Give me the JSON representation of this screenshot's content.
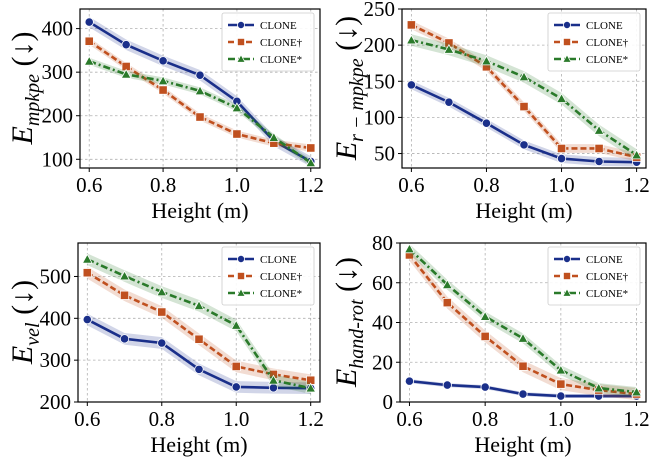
{
  "chart_data": [
    {
      "type": "line",
      "ylabel_main": "E",
      "ylabel_sub": "mpkpe",
      "ylabel_arrow": "(↓)",
      "xlabel": "Height (m)",
      "x": [
        0.6,
        0.7,
        0.8,
        0.9,
        1.0,
        1.1,
        1.2
      ],
      "xticks": [
        "0.6",
        "0.8",
        "1.0",
        "1.2"
      ],
      "yticks": [
        "100",
        "200",
        "300",
        "400"
      ],
      "ylim": [
        80,
        445
      ],
      "grid": true,
      "legend_position": "top-right",
      "series": [
        {
          "name": "CLONE",
          "color": "#1a2f8a",
          "marker": "circle",
          "dash": "solid",
          "values": [
            415,
            363,
            326,
            293,
            233,
            142,
            95
          ],
          "band": 12
        },
        {
          "name": "CLONE†",
          "color": "#c0501f",
          "marker": "square",
          "dash": "dashed",
          "values": [
            371,
            313,
            259,
            197,
            158,
            137,
            126
          ],
          "band": 8
        },
        {
          "name": "CLONE*",
          "color": "#2a7a2a",
          "marker": "triangle",
          "dash": "dashdot",
          "values": [
            325,
            295,
            280,
            257,
            218,
            150,
            92
          ],
          "band": 8
        }
      ]
    },
    {
      "type": "line",
      "ylabel_main": "E",
      "ylabel_sub": "r − mpkpe",
      "ylabel_arrow": "(↓)",
      "xlabel": "Height (m)",
      "x": [
        0.6,
        0.7,
        0.8,
        0.9,
        1.0,
        1.1,
        1.2
      ],
      "xticks": [
        "0.6",
        "0.8",
        "1.0",
        "1.2"
      ],
      "yticks": [
        "50",
        "100",
        "150",
        "200",
        "250"
      ],
      "ylim": [
        30,
        250
      ],
      "grid": true,
      "legend_position": "top-right",
      "series": [
        {
          "name": "CLONE",
          "color": "#1a2f8a",
          "marker": "circle",
          "dash": "solid",
          "values": [
            145,
            121,
            92,
            62,
            43,
            39,
            38
          ],
          "band": 6
        },
        {
          "name": "CLONE†",
          "color": "#c0501f",
          "marker": "square",
          "dash": "dashed",
          "values": [
            228,
            203,
            170,
            115,
            57,
            57,
            45
          ],
          "band": 6
        },
        {
          "name": "CLONE*",
          "color": "#2a7a2a",
          "marker": "triangle",
          "dash": "dashdot",
          "values": [
            207,
            194,
            178,
            156,
            126,
            82,
            48
          ],
          "band": 8
        }
      ]
    },
    {
      "type": "line",
      "ylabel_main": "E",
      "ylabel_sub": "vel",
      "ylabel_arrow": "(↓)",
      "xlabel": "Height (m)",
      "x": [
        0.6,
        0.7,
        0.8,
        0.9,
        1.0,
        1.1,
        1.2
      ],
      "xticks": [
        "0.6",
        "0.8",
        "1.0",
        "1.2"
      ],
      "yticks": [
        "200",
        "300",
        "400",
        "500"
      ],
      "ylim": [
        200,
        580
      ],
      "grid": true,
      "legend_position": "top-right",
      "series": [
        {
          "name": "CLONE",
          "color": "#1a2f8a",
          "marker": "circle",
          "dash": "solid",
          "values": [
            397,
            351,
            341,
            278,
            236,
            234,
            233
          ],
          "band": 14
        },
        {
          "name": "CLONE†",
          "color": "#c0501f",
          "marker": "square",
          "dash": "dashed",
          "values": [
            509,
            455,
            415,
            350,
            285,
            266,
            252
          ],
          "band": 14
        },
        {
          "name": "CLONE*",
          "color": "#2a7a2a",
          "marker": "triangle",
          "dash": "dashdot",
          "values": [
            541,
            501,
            463,
            430,
            383,
            252,
            233
          ],
          "band": 14
        }
      ]
    },
    {
      "type": "line",
      "ylabel_main": "E",
      "ylabel_sub": "hand-rot",
      "ylabel_arrow": "(↓)",
      "xlabel": "Height (m)",
      "x": [
        0.6,
        0.7,
        0.8,
        0.9,
        1.0,
        1.1,
        1.2
      ],
      "xticks": [
        "0.6",
        "0.8",
        "1.0",
        "1.2"
      ],
      "yticks": [
        "0",
        "20",
        "40",
        "60",
        "80"
      ],
      "ylim": [
        0,
        80
      ],
      "grid": true,
      "legend_position": "top-right",
      "series": [
        {
          "name": "CLONE",
          "color": "#1a2f8a",
          "marker": "circle",
          "dash": "solid",
          "values": [
            10.5,
            8.5,
            7.5,
            4,
            3,
            3,
            3
          ],
          "band": 1
        },
        {
          "name": "CLONE†",
          "color": "#c0501f",
          "marker": "square",
          "dash": "dashed",
          "values": [
            74,
            50,
            33,
            18,
            9,
            6,
            4
          ],
          "band": 3
        },
        {
          "name": "CLONE*",
          "color": "#2a7a2a",
          "marker": "triangle",
          "dash": "dashdot",
          "values": [
            77,
            59,
            43,
            32,
            16,
            7,
            5
          ],
          "band": 2.5
        }
      ]
    }
  ]
}
